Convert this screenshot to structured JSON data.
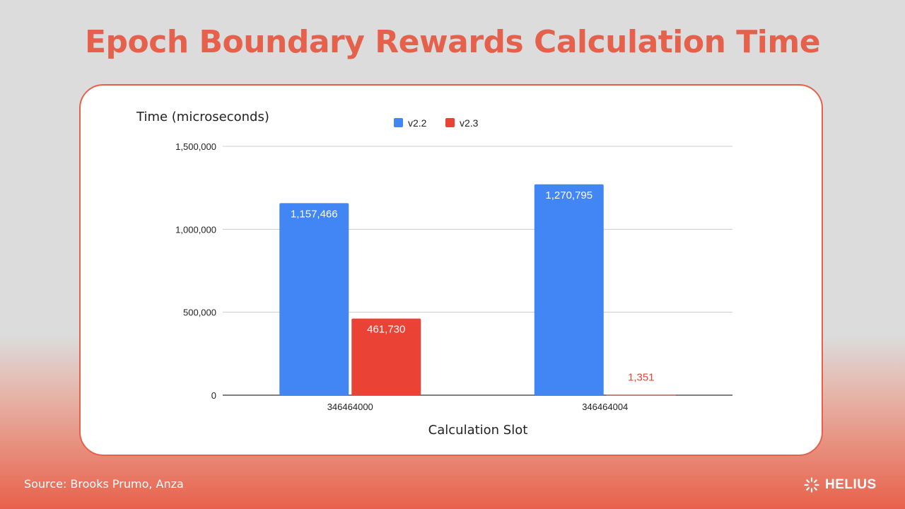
{
  "slide": {
    "title": "Epoch Boundary Rewards Calculation Time",
    "source": "Source: Brooks Prumo, Anza",
    "brand": "HELIUS",
    "brand_icon": "helius-logo-icon"
  },
  "chart_data": {
    "type": "bar",
    "ylabel": "Time (microseconds)",
    "xlabel": "Calculation Slot",
    "categories": [
      "346464000",
      "346464004"
    ],
    "series": [
      {
        "name": "v2.2",
        "color": "#4285f4",
        "values": [
          1157466,
          1270795
        ],
        "labels": [
          "1,157,466",
          "1,270,795"
        ]
      },
      {
        "name": "v2.3",
        "color": "#ea4335",
        "values": [
          461730,
          1351
        ],
        "labels": [
          "461,730",
          "1,351"
        ]
      }
    ],
    "ylim": [
      0,
      1500000
    ],
    "yticks": [
      0,
      500000,
      1000000,
      1500000
    ],
    "ytick_labels": [
      "0",
      "500,000",
      "1,000,000",
      "1,500,000"
    ],
    "grid": true,
    "legend": "top-center"
  }
}
